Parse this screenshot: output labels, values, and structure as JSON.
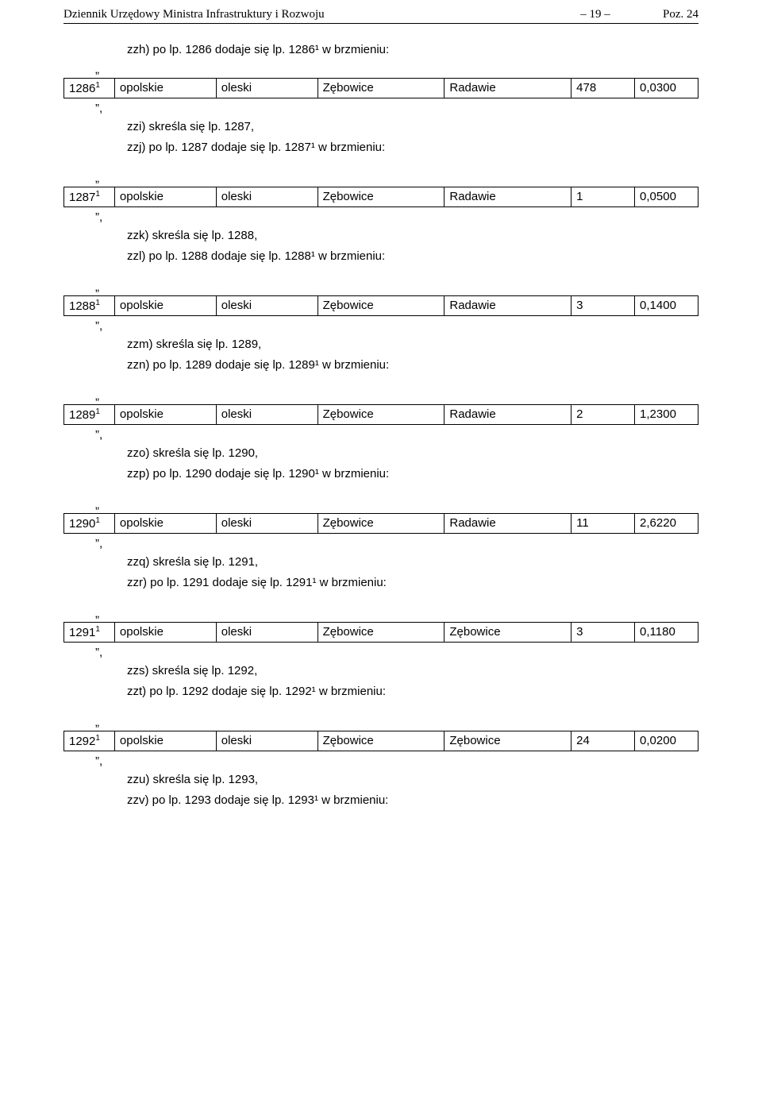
{
  "header": {
    "left": "Dziennik Urzędowy Ministra Infrastruktury i Rozwoju",
    "page_marker": "– 19 –",
    "right": "Poz. 24"
  },
  "sections": [
    {
      "lines": [
        "zzh) po lp. 1286 dodaje się lp. 1286¹ w brzmieniu:"
      ],
      "row": {
        "lp": "1286",
        "sup": "1",
        "c2": "opolskie",
        "c3": "oleski",
        "c4": "Zębowice",
        "c5": "Radawie",
        "c6": "478",
        "c7": "0,0300"
      },
      "after": [
        "zzi) skreśla się lp. 1287,",
        "zzj) po lp. 1287 dodaje się lp. 1287¹ w brzmieniu:"
      ]
    },
    {
      "row": {
        "lp": "1287",
        "sup": "1",
        "c2": "opolskie",
        "c3": "oleski",
        "c4": "Zębowice",
        "c5": "Radawie",
        "c6": "1",
        "c7": "0,0500"
      },
      "after": [
        "zzk) skreśla się lp. 1288,",
        "zzl) po lp. 1288 dodaje się lp. 1288¹ w brzmieniu:"
      ]
    },
    {
      "row": {
        "lp": "1288",
        "sup": "1",
        "c2": "opolskie",
        "c3": "oleski",
        "c4": "Zębowice",
        "c5": "Radawie",
        "c6": "3",
        "c7": "0,1400"
      },
      "after": [
        "zzm) skreśla się lp. 1289,",
        "zzn) po lp. 1289 dodaje się lp. 1289¹ w brzmieniu:"
      ]
    },
    {
      "row": {
        "lp": "1289",
        "sup": "1",
        "c2": "opolskie",
        "c3": "oleski",
        "c4": "Zębowice",
        "c5": "Radawie",
        "c6": "2",
        "c7": "1,2300"
      },
      "after": [
        "zzo) skreśla się lp. 1290,",
        "zzp) po lp. 1290 dodaje się lp. 1290¹ w brzmieniu:"
      ]
    },
    {
      "row": {
        "lp": "1290",
        "sup": "1",
        "c2": "opolskie",
        "c3": "oleski",
        "c4": "Zębowice",
        "c5": "Radawie",
        "c6": "11",
        "c7": "2,6220"
      },
      "after": [
        "zzq) skreśla się lp. 1291,",
        "zzr) po lp. 1291 dodaje się lp. 1291¹ w brzmieniu:"
      ]
    },
    {
      "row": {
        "lp": "1291",
        "sup": "1",
        "c2": "opolskie",
        "c3": "oleski",
        "c4": "Zębowice",
        "c5": "Zębowice",
        "c6": "3",
        "c7": "0,1180"
      },
      "after": [
        "zzs) skreśla się lp. 1292,",
        "zzt) po lp. 1292 dodaje się lp. 1292¹ w brzmieniu:"
      ]
    },
    {
      "row": {
        "lp": "1292",
        "sup": "1",
        "c2": "opolskie",
        "c3": "oleski",
        "c4": "Zębowice",
        "c5": "Zębowice",
        "c6": "24",
        "c7": "0,0200"
      },
      "after": [
        "zzu) skreśla się lp. 1293,",
        "zzv) po lp. 1293 dodaje się lp. 1293¹ w brzmieniu:"
      ]
    }
  ],
  "quote_open": "„",
  "quote_close_comma": "”,"
}
